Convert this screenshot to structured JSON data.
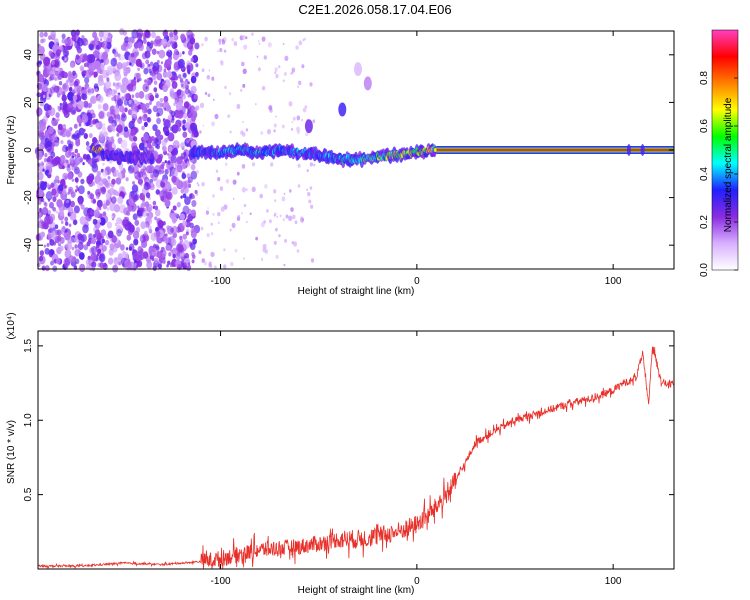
{
  "title": "C2E1.2026.058.17.04.E06",
  "chart_data": [
    {
      "type": "heatmap",
      "xlabel": "Height of straight line (km)",
      "ylabel": "Frequency (Hz)",
      "xlim": [
        -193,
        131
      ],
      "ylim": [
        -50,
        50
      ],
      "xticks": [
        -100,
        0,
        100
      ],
      "yticks": [
        -40,
        -20,
        0,
        20,
        40
      ],
      "colorbar": {
        "label": "Normalized spectral amplitude",
        "range": [
          0.0,
          1.0
        ],
        "ticks": [
          0.0,
          0.2,
          0.4,
          0.6,
          0.8
        ],
        "tick_labels": [
          "0.0",
          "0.2",
          "0.4",
          "0.6",
          "0.8"
        ],
        "colors": [
          "#ffffff",
          "#d8b0ff",
          "#8a2be2",
          "#2020ff",
          "#00ffff",
          "#00ff00",
          "#ffff00",
          "#ff8000",
          "#ff0000",
          "#ff40c0"
        ]
      },
      "signal_trace": {
        "x": [
          -160,
          -150,
          -140,
          -110,
          -100,
          -90,
          -80,
          -70,
          -60,
          -50,
          -40,
          -30,
          -20,
          -10,
          0,
          10,
          20,
          40,
          60,
          80,
          100,
          120,
          131
        ],
        "y": [
          -2,
          -3,
          -3,
          -1,
          -1,
          0,
          -1,
          0,
          -1,
          -2,
          -4,
          -4,
          -3,
          -2,
          -1,
          0,
          0,
          0,
          0,
          0,
          0,
          0,
          0
        ],
        "amp": [
          0.35,
          0.3,
          0.25,
          0.4,
          0.45,
          0.5,
          0.5,
          0.45,
          0.45,
          0.4,
          0.5,
          0.6,
          0.65,
          0.7,
          0.75,
          0.8,
          0.85,
          0.85,
          0.85,
          0.85,
          0.85,
          0.85,
          0.85
        ]
      },
      "features": [
        {
          "x": -38,
          "y": 17,
          "amp": 0.3
        },
        {
          "x": -25,
          "y": 28,
          "amp": 0.15
        },
        {
          "x": -30,
          "y": 34,
          "amp": 0.1
        },
        {
          "x": -55,
          "y": 10,
          "amp": 0.25
        }
      ]
    },
    {
      "type": "line",
      "xlabel": "Height of straight line (km)",
      "ylabel": "SNR (10 * v/v)",
      "y_multiplier": "(x10⁴)",
      "xlim": [
        -193,
        131
      ],
      "ylim": [
        0,
        1.6
      ],
      "xticks": [
        -100,
        0,
        100
      ],
      "yticks": [
        0.5,
        1.0,
        1.5
      ],
      "ytick_labels": [
        "0.5",
        "1.0",
        "1.5"
      ],
      "series": [
        {
          "name": "SNR",
          "color": "#e8302a",
          "x": [
            -193,
            -170,
            -150,
            -130,
            -110,
            -100,
            -90,
            -80,
            -70,
            -60,
            -50,
            -40,
            -30,
            -20,
            -10,
            0,
            5,
            10,
            15,
            20,
            25,
            30,
            40,
            50,
            60,
            70,
            80,
            90,
            100,
            105,
            110,
            112,
            115,
            118,
            120,
            125,
            131
          ],
          "y": [
            0.02,
            0.02,
            0.04,
            0.03,
            0.05,
            0.07,
            0.1,
            0.13,
            0.14,
            0.15,
            0.17,
            0.2,
            0.2,
            0.22,
            0.25,
            0.3,
            0.35,
            0.42,
            0.5,
            0.6,
            0.72,
            0.85,
            0.93,
            1.0,
            1.04,
            1.08,
            1.12,
            1.15,
            1.2,
            1.25,
            1.27,
            1.3,
            1.45,
            1.1,
            1.5,
            1.25,
            1.24
          ]
        }
      ]
    }
  ]
}
